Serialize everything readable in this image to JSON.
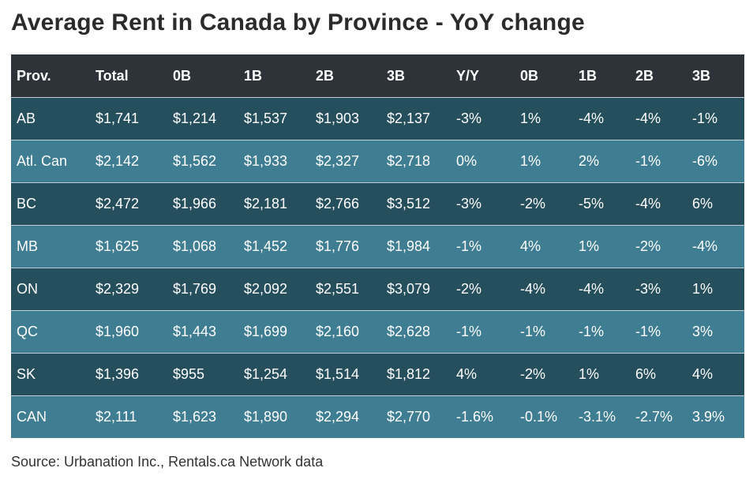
{
  "chart_data": {
    "type": "table",
    "title": "Average Rent in Canada by Province - YoY change",
    "columns": [
      "Prov.",
      "Total",
      "0B",
      "1B",
      "2B",
      "3B",
      "Y/Y",
      "0B",
      "1B",
      "2B",
      "3B"
    ],
    "rows": [
      [
        "AB",
        "$1,741",
        "$1,214",
        "$1,537",
        "$1,903",
        "$2,137",
        "-3%",
        "1%",
        "-4%",
        "-4%",
        "-1%"
      ],
      [
        "Atl. Can",
        "$2,142",
        "$1,562",
        "$1,933",
        "$2,327",
        "$2,718",
        "0%",
        "1%",
        "2%",
        "-1%",
        "-6%"
      ],
      [
        "BC",
        "$2,472",
        "$1,966",
        "$2,181",
        "$2,766",
        "$3,512",
        "-3%",
        "-2%",
        "-5%",
        "-4%",
        "6%"
      ],
      [
        "MB",
        "$1,625",
        "$1,068",
        "$1,452",
        "$1,776",
        "$1,984",
        "-1%",
        "4%",
        "1%",
        "-2%",
        "-4%"
      ],
      [
        "ON",
        "$2,329",
        "$1,769",
        "$2,092",
        "$2,551",
        "$3,079",
        "-2%",
        "-4%",
        "-4%",
        "-3%",
        "1%"
      ],
      [
        "QC",
        "$1,960",
        "$1,443",
        "$1,699",
        "$2,160",
        "$2,628",
        "-1%",
        "-1%",
        "-1%",
        "-1%",
        "3%"
      ],
      [
        "SK",
        "$1,396",
        "$955",
        "$1,254",
        "$1,514",
        "$1,812",
        "4%",
        "-2%",
        "1%",
        "6%",
        "4%"
      ],
      [
        "CAN",
        "$2,111",
        "$1,623",
        "$1,890",
        "$2,294",
        "$2,770",
        "-1.6%",
        "-0.1%",
        "-3.1%",
        "-2.7%",
        "3.9%"
      ]
    ],
    "source": "Source: Urbanation Inc., Rentals.ca Network data"
  },
  "colors": {
    "header_bg": "#2d3338",
    "row_dark": "#264f5d",
    "row_light": "#3f7d92",
    "title_text": "#2b2b2b"
  }
}
